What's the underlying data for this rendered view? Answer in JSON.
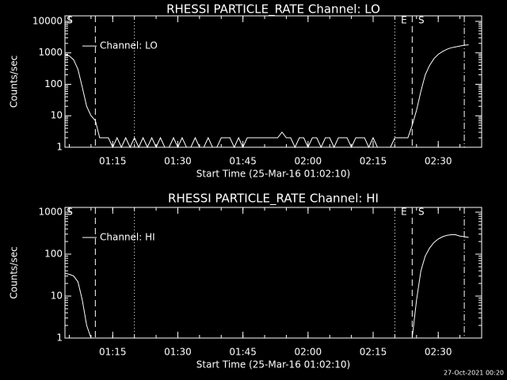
{
  "chart_data": [
    {
      "type": "line",
      "title": "RHESSI PARTICLE_RATE Channel: LO",
      "x_label": "Start Time (25-Mar-16 01:02:10)",
      "y_label": "Counts/sec",
      "log_scale": true,
      "xlim": [
        "01:04",
        "02:40"
      ],
      "xticks": [
        "01:15",
        "01:30",
        "01:45",
        "02:00",
        "02:15",
        "02:30"
      ],
      "ylim": [
        1,
        15000
      ],
      "yticks": [
        1,
        10,
        100,
        1000,
        10000
      ],
      "legend": "upper left",
      "vlines": [
        {
          "x": "01:11",
          "style": "dashed"
        },
        {
          "x": "01:20",
          "style": "dotted"
        },
        {
          "x": "02:20",
          "style": "dotted"
        },
        {
          "x": "02:24",
          "style": "dashed"
        },
        {
          "x": "02:36",
          "style": "dashdot"
        }
      ],
      "markers": [
        {
          "label": "S",
          "x": "01:04"
        },
        {
          "label": "E",
          "x": "02:21"
        },
        {
          "label": "S",
          "x": "02:25"
        }
      ],
      "series": [
        {
          "name": "Channel: LO",
          "color": "#ffffff",
          "x": [
            "01:04",
            "01:05",
            "01:06",
            "01:07",
            "01:08",
            "01:09",
            "01:10",
            "01:11",
            "01:12",
            "01:13",
            "01:14",
            "01:15",
            "01:16",
            "01:17",
            "01:18",
            "01:19",
            "01:20",
            "01:21",
            "01:22",
            "01:23",
            "01:24",
            "01:25",
            "01:26",
            "01:27",
            "01:28",
            "01:29",
            "01:30",
            "01:31",
            "01:32",
            "01:33",
            "01:34",
            "01:35",
            "01:36",
            "01:37",
            "01:38",
            "01:39",
            "01:40",
            "01:41",
            "01:42",
            "01:43",
            "01:44",
            "01:45",
            "01:46",
            "01:47",
            "01:48",
            "01:49",
            "01:50",
            "01:51",
            "01:52",
            "01:53",
            "01:54",
            "01:55",
            "01:56",
            "01:57",
            "01:58",
            "01:59",
            "02:00",
            "02:01",
            "02:02",
            "02:03",
            "02:04",
            "02:05",
            "02:06",
            "02:07",
            "02:08",
            "02:09",
            "02:10",
            "02:11",
            "02:12",
            "02:13",
            "02:14",
            "02:15",
            "02:16",
            "02:17",
            "02:18",
            "02:19",
            "02:20",
            "02:21",
            "02:22",
            "02:23",
            "02:24",
            "02:25",
            "02:26",
            "02:27",
            "02:28",
            "02:29",
            "02:30",
            "02:31",
            "02:32",
            "02:33",
            "02:34",
            "02:35",
            "02:36",
            "02:37"
          ],
          "values": [
            900,
            800,
            600,
            300,
            80,
            20,
            10,
            7,
            2,
            2,
            2,
            1,
            2,
            1,
            2,
            1,
            2,
            1,
            2,
            1,
            2,
            1,
            2,
            1,
            1,
            2,
            1,
            2,
            1,
            1,
            2,
            1,
            1,
            2,
            1,
            1,
            2,
            2,
            2,
            1,
            2,
            1,
            2,
            2,
            2,
            2,
            2,
            2,
            2,
            2,
            3,
            2,
            2,
            1,
            2,
            2,
            1,
            2,
            2,
            1,
            2,
            2,
            1,
            2,
            2,
            2,
            1,
            2,
            2,
            2,
            1,
            2,
            1,
            1,
            1,
            1,
            2,
            2,
            2,
            2,
            5,
            15,
            60,
            200,
            400,
            650,
            900,
            1100,
            1300,
            1450,
            1550,
            1650,
            1750,
            1800
          ]
        }
      ]
    },
    {
      "type": "line",
      "title": "RHESSI PARTICLE_RATE Channel: HI",
      "x_label": "Start Time (25-Mar-16 01:02:10)",
      "y_label": "Counts/sec",
      "log_scale": true,
      "xlim": [
        "01:04",
        "02:40"
      ],
      "xticks": [
        "01:15",
        "01:30",
        "01:45",
        "02:00",
        "02:15",
        "02:30"
      ],
      "ylim": [
        1,
        1300
      ],
      "yticks": [
        1,
        10,
        100,
        1000
      ],
      "legend": "upper left",
      "vlines": [
        {
          "x": "01:11",
          "style": "dashed"
        },
        {
          "x": "01:20",
          "style": "dotted"
        },
        {
          "x": "02:20",
          "style": "dotted"
        },
        {
          "x": "02:24",
          "style": "dashed"
        },
        {
          "x": "02:36",
          "style": "dashdot"
        }
      ],
      "markers": [
        {
          "label": "S",
          "x": "01:04"
        },
        {
          "label": "E",
          "x": "02:21"
        },
        {
          "label": "S",
          "x": "02:25"
        }
      ],
      "series": [
        {
          "name": "Channel: HI",
          "color": "#ffffff",
          "x": [
            "01:04",
            "01:05",
            "01:06",
            "01:07",
            "01:08",
            "01:09",
            "01:10",
            "01:11",
            "02:24",
            "02:25",
            "02:26",
            "02:27",
            "02:28",
            "02:29",
            "02:30",
            "02:31",
            "02:32",
            "02:33",
            "02:34",
            "02:35",
            "02:36",
            "02:37"
          ],
          "values": [
            35,
            33,
            30,
            22,
            8,
            2,
            1,
            null,
            1,
            8,
            40,
            90,
            140,
            190,
            230,
            260,
            280,
            290,
            290,
            270,
            260,
            250
          ]
        }
      ]
    }
  ],
  "footer": "27-Oct-2021 00:20"
}
